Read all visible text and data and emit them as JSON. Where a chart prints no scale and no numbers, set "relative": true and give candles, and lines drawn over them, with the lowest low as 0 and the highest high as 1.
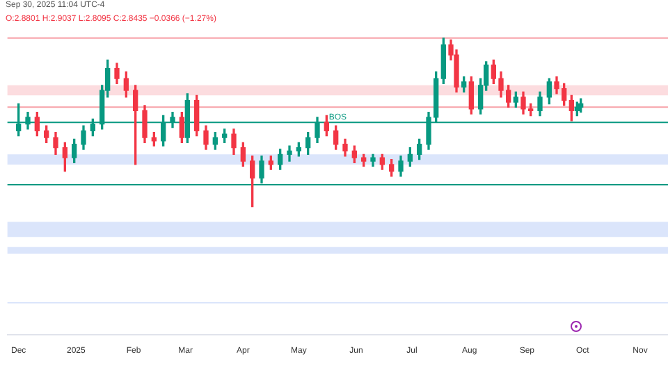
{
  "chart_data": {
    "type": "candlestick",
    "relative": true,
    "title": "Sep 30, 2025 11:04 UTC-4",
    "subtitle": "O:2.8801 H:2.9037 L:2.8095 C:2.8435 −0.0366 (−1.27%)",
    "x": [
      "2024-12-01",
      "2024-12-06",
      "2024-12-11",
      "2024-12-16",
      "2024-12-21",
      "2024-12-26",
      "2024-12-31",
      "2025-01-05",
      "2025-01-10",
      "2025-01-15",
      "2025-01-18",
      "2025-01-23",
      "2025-01-28",
      "2025-02-02",
      "2025-02-07",
      "2025-02-12",
      "2025-02-17",
      "2025-02-22",
      "2025-02-27",
      "2025-03-02",
      "2025-03-07",
      "2025-03-12",
      "2025-03-17",
      "2025-03-22",
      "2025-03-27",
      "2025-04-01",
      "2025-04-06",
      "2025-04-11",
      "2025-04-16",
      "2025-04-21",
      "2025-04-26",
      "2025-05-01",
      "2025-05-06",
      "2025-05-11",
      "2025-05-16",
      "2025-05-21",
      "2025-05-26",
      "2025-05-31",
      "2025-06-05",
      "2025-06-10",
      "2025-06-15",
      "2025-06-20",
      "2025-06-25",
      "2025-06-30",
      "2025-07-05",
      "2025-07-10",
      "2025-07-14",
      "2025-07-18",
      "2025-07-22",
      "2025-07-25",
      "2025-07-29",
      "2025-08-02",
      "2025-08-07",
      "2025-08-10",
      "2025-08-14",
      "2025-08-18",
      "2025-08-22",
      "2025-08-26",
      "2025-08-30",
      "2025-09-03",
      "2025-09-08",
      "2025-09-13",
      "2025-09-17",
      "2025-09-21",
      "2025-09-25",
      "2025-09-28",
      "2025-09-30"
    ],
    "ohlc": [
      [
        0.45,
        0.61,
        0.42,
        0.49
      ],
      [
        0.49,
        0.56,
        0.46,
        0.53
      ],
      [
        0.53,
        0.56,
        0.42,
        0.45
      ],
      [
        0.45,
        0.48,
        0.38,
        0.41
      ],
      [
        0.41,
        0.44,
        0.31,
        0.35
      ],
      [
        0.35,
        0.38,
        0.21,
        0.29
      ],
      [
        0.29,
        0.4,
        0.26,
        0.37
      ],
      [
        0.37,
        0.48,
        0.34,
        0.45
      ],
      [
        0.45,
        0.52,
        0.42,
        0.49
      ],
      [
        0.49,
        0.72,
        0.46,
        0.69
      ],
      [
        0.69,
        0.87,
        0.65,
        0.82
      ],
      [
        0.82,
        0.85,
        0.73,
        0.76
      ],
      [
        0.76,
        0.8,
        0.65,
        0.69
      ],
      [
        0.69,
        0.72,
        0.25,
        0.57
      ],
      [
        0.57,
        0.6,
        0.38,
        0.41
      ],
      [
        0.41,
        0.44,
        0.36,
        0.39
      ],
      [
        0.39,
        0.54,
        0.36,
        0.5
      ],
      [
        0.5,
        0.56,
        0.47,
        0.53
      ],
      [
        0.53,
        0.56,
        0.38,
        0.41
      ],
      [
        0.41,
        0.67,
        0.38,
        0.63
      ],
      [
        0.63,
        0.66,
        0.42,
        0.45
      ],
      [
        0.45,
        0.48,
        0.34,
        0.37
      ],
      [
        0.37,
        0.44,
        0.34,
        0.41
      ],
      [
        0.41,
        0.46,
        0.38,
        0.43
      ],
      [
        0.43,
        0.46,
        0.31,
        0.35
      ],
      [
        0.35,
        0.38,
        0.24,
        0.27
      ],
      [
        0.27,
        0.3,
        0,
        0.17
      ],
      [
        0.17,
        0.3,
        0.14,
        0.27
      ],
      [
        0.27,
        0.3,
        0.22,
        0.25
      ],
      [
        0.25,
        0.34,
        0.22,
        0.31
      ],
      [
        0.31,
        0.36,
        0.27,
        0.33
      ],
      [
        0.33,
        0.38,
        0.3,
        0.35
      ],
      [
        0.35,
        0.44,
        0.31,
        0.41
      ],
      [
        0.41,
        0.53,
        0.38,
        0.5
      ],
      [
        0.5,
        0.54,
        0.42,
        0.45
      ],
      [
        0.45,
        0.48,
        0.34,
        0.37
      ],
      [
        0.37,
        0.4,
        0.3,
        0.33
      ],
      [
        0.33,
        0.36,
        0.26,
        0.29
      ],
      [
        0.29,
        0.31,
        0.24,
        0.27
      ],
      [
        0.27,
        0.31,
        0.24,
        0.29
      ],
      [
        0.29,
        0.31,
        0.22,
        0.25
      ],
      [
        0.25,
        0.28,
        0.18,
        0.21
      ],
      [
        0.21,
        0.3,
        0.18,
        0.27
      ],
      [
        0.27,
        0.35,
        0.24,
        0.31
      ],
      [
        0.31,
        0.4,
        0.28,
        0.37
      ],
      [
        0.37,
        0.56,
        0.34,
        0.53
      ],
      [
        0.53,
        0.8,
        0.5,
        0.76
      ],
      [
        0.76,
        1.0,
        0.73,
        0.96
      ],
      [
        0.96,
        0.99,
        0.87,
        0.9
      ],
      [
        0.9,
        0.93,
        0.68,
        0.71
      ],
      [
        0.71,
        0.77,
        0.68,
        0.74
      ],
      [
        0.74,
        0.77,
        0.55,
        0.58
      ],
      [
        0.58,
        0.76,
        0.55,
        0.72
      ],
      [
        0.72,
        0.86,
        0.69,
        0.84
      ],
      [
        0.84,
        0.87,
        0.73,
        0.76
      ],
      [
        0.76,
        0.8,
        0.65,
        0.69
      ],
      [
        0.69,
        0.72,
        0.59,
        0.62
      ],
      [
        0.62,
        0.68,
        0.59,
        0.65
      ],
      [
        0.65,
        0.68,
        0.55,
        0.58
      ],
      [
        0.58,
        0.61,
        0.54,
        0.57
      ],
      [
        0.57,
        0.68,
        0.54,
        0.65
      ],
      [
        0.65,
        0.76,
        0.61,
        0.74
      ],
      [
        0.74,
        0.77,
        0.67,
        0.7
      ],
      [
        0.7,
        0.73,
        0.6,
        0.63
      ],
      [
        0.63,
        0.66,
        0.51,
        0.57
      ],
      [
        0.57,
        0.62,
        0.54,
        0.59
      ],
      [
        0.59,
        0.64,
        0.56,
        0.61
      ]
    ],
    "xlim": [
      "2024-11-25",
      "2025-11-16"
    ],
    "xticks": [
      {
        "value": "2024-12-01",
        "label": "Dec"
      },
      {
        "value": "2025-01-01",
        "label": "2025"
      },
      {
        "value": "2025-02-01",
        "label": "Feb"
      },
      {
        "value": "2025-03-01",
        "label": "Mar"
      },
      {
        "value": "2025-04-01",
        "label": "Apr"
      },
      {
        "value": "2025-05-01",
        "label": "May"
      },
      {
        "value": "2025-06-01",
        "label": "Jun"
      },
      {
        "value": "2025-07-01",
        "label": "Jul"
      },
      {
        "value": "2025-08-01",
        "label": "Aug"
      },
      {
        "value": "2025-09-01",
        "label": "Sep"
      },
      {
        "value": "2025-10-01",
        "label": "Oct"
      },
      {
        "value": "2025-11-01",
        "label": "Nov"
      }
    ],
    "grid": false,
    "ref_lines": [
      {
        "axis": "y",
        "value": 0.5,
        "label": "BOS",
        "color": "#089981"
      },
      {
        "axis": "y",
        "value": 1.0,
        "color": "#f7a1a8"
      },
      {
        "axis": "y",
        "value": 0.13,
        "color": "#089981"
      },
      {
        "axis": "y",
        "value": 0.59,
        "color": "#f7a1a8"
      },
      {
        "axis": "y",
        "value": -0.57,
        "color": "#dbe5fb"
      }
    ],
    "bands": [
      {
        "axis": "y",
        "from": 0.66,
        "to": 0.72,
        "color": "#fcdcdf"
      },
      {
        "axis": "y",
        "from": 0.25,
        "to": 0.31,
        "color": "#dbe5fb"
      },
      {
        "axis": "y",
        "from": -0.18,
        "to": -0.09,
        "color": "#dbe5fb"
      },
      {
        "axis": "y",
        "from": -0.28,
        "to": -0.24,
        "color": "#dbe5fb"
      }
    ]
  }
}
